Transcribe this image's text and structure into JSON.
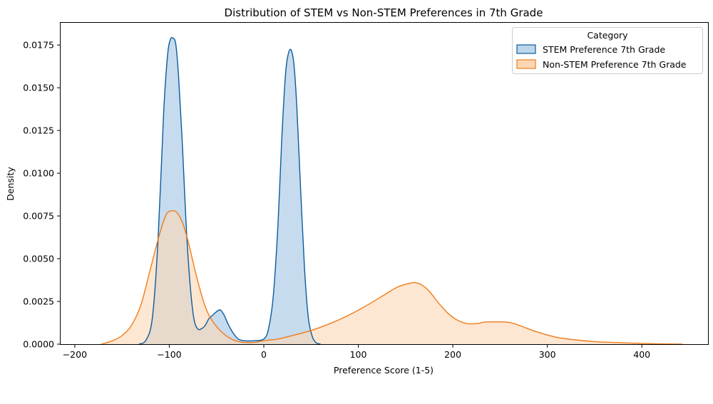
{
  "chart_data": {
    "type": "area",
    "title": "Distribution of STEM vs Non-STEM Preferences in 7th Grade",
    "xlabel": "Preference Score (1-5)",
    "ylabel": "Density",
    "xlim": [
      -215,
      470
    ],
    "ylim": [
      0,
      0.0188
    ],
    "x_ticks": [
      -200,
      -100,
      0,
      100,
      200,
      300,
      400
    ],
    "x_tick_labels": [
      "−200",
      "−100",
      "0",
      "100",
      "200",
      "300",
      "400"
    ],
    "y_ticks": [
      0,
      0.0025,
      0.005,
      0.0075,
      0.01,
      0.0125,
      0.015,
      0.0175
    ],
    "y_tick_labels": [
      "0.0000",
      "0.0025",
      "0.0050",
      "0.0075",
      "0.0100",
      "0.0125",
      "0.0150",
      "0.0175"
    ],
    "grid": false,
    "legend": {
      "title": "Category",
      "placement": "top-right"
    },
    "series": [
      {
        "name": "STEM Preference 7th Grade",
        "stroke": "#0a5c9e",
        "fill": "#bcd5ea",
        "x": [
          -132,
          -125,
          -118,
          -112,
          -106,
          -102,
          -99,
          -96,
          -93,
          -90,
          -86,
          -82,
          -78,
          -74,
          -70,
          -66,
          -62,
          -58,
          -54,
          -50,
          -46,
          -42,
          -38,
          -33,
          -27,
          -20,
          -10,
          0,
          5,
          10,
          15,
          19,
          23,
          26,
          29,
          32,
          35,
          39,
          43,
          47,
          51,
          55,
          60
        ],
        "y": [
          0,
          0.0002,
          0.0015,
          0.006,
          0.0135,
          0.0168,
          0.0178,
          0.0179,
          0.0175,
          0.0155,
          0.0115,
          0.0068,
          0.0035,
          0.0015,
          0.0009,
          0.0009,
          0.0011,
          0.0015,
          0.0017,
          0.0019,
          0.002,
          0.0017,
          0.0012,
          0.0007,
          0.0003,
          0.0002,
          0.0002,
          0.0003,
          0.0009,
          0.0028,
          0.007,
          0.012,
          0.0158,
          0.017,
          0.0172,
          0.0163,
          0.0138,
          0.009,
          0.0045,
          0.0016,
          0.0005,
          0.0001,
          0
        ]
      },
      {
        "name": "Non-STEM Preference 7th Grade",
        "stroke": "#f07c1a",
        "fill": "#fdd7b4",
        "x": [
          -172,
          -160,
          -150,
          -140,
          -130,
          -120,
          -110,
          -103,
          -97,
          -92,
          -86,
          -80,
          -74,
          -68,
          -62,
          -56,
          -48,
          -40,
          -30,
          -20,
          -10,
          0,
          15,
          30,
          50,
          70,
          90,
          110,
          125,
          140,
          150,
          158,
          166,
          175,
          185,
          195,
          205,
          215,
          225,
          235,
          245,
          255,
          265,
          275,
          290,
          310,
          330,
          350,
          370,
          390,
          410,
          425,
          443
        ],
        "y": [
          0,
          0.0002,
          0.0005,
          0.0011,
          0.0023,
          0.0044,
          0.0065,
          0.0076,
          0.0078,
          0.0077,
          0.0071,
          0.006,
          0.0046,
          0.0033,
          0.0022,
          0.0015,
          0.0009,
          0.0005,
          0.0002,
          0.0001,
          0.0001,
          0.0002,
          0.0003,
          0.0005,
          0.0008,
          0.0012,
          0.0017,
          0.0023,
          0.0028,
          0.0033,
          0.0035,
          0.0036,
          0.0035,
          0.0031,
          0.0024,
          0.0018,
          0.0014,
          0.0012,
          0.0012,
          0.0013,
          0.0013,
          0.0013,
          0.0012,
          0.001,
          0.0007,
          0.0004,
          0.00025,
          0.00015,
          0.0001,
          6e-05,
          3e-05,
          1e-05,
          0
        ]
      }
    ]
  }
}
